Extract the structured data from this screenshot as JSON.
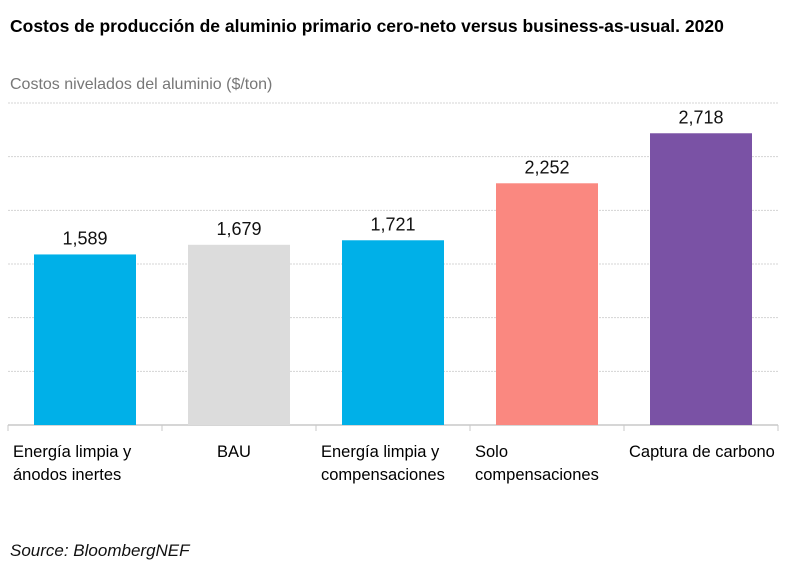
{
  "chart_data": {
    "type": "bar",
    "title": "Costos de producción de aluminio primario cero-neto versus business-as-usual. 2020",
    "subtitle": "Costos nivelados del aluminio ($/ton)",
    "categories": [
      "Energía limpia y ánodos inertes",
      "BAU",
      "Energía limpia y compensaciones",
      "Solo compensaciones",
      "Captura de carbono"
    ],
    "values": [
      1589,
      1679,
      1721,
      2252,
      2718
    ],
    "data_labels": [
      "1,589",
      "1,679",
      "1,721",
      "2,252",
      "2,718"
    ],
    "colors": [
      "#00b0e8",
      "#dcdcdc",
      "#00b0e8",
      "#fa8880",
      "#7a52a5"
    ],
    "ylim": [
      0,
      3000
    ],
    "grid": true,
    "source": "Source: BloombergNEF"
  }
}
